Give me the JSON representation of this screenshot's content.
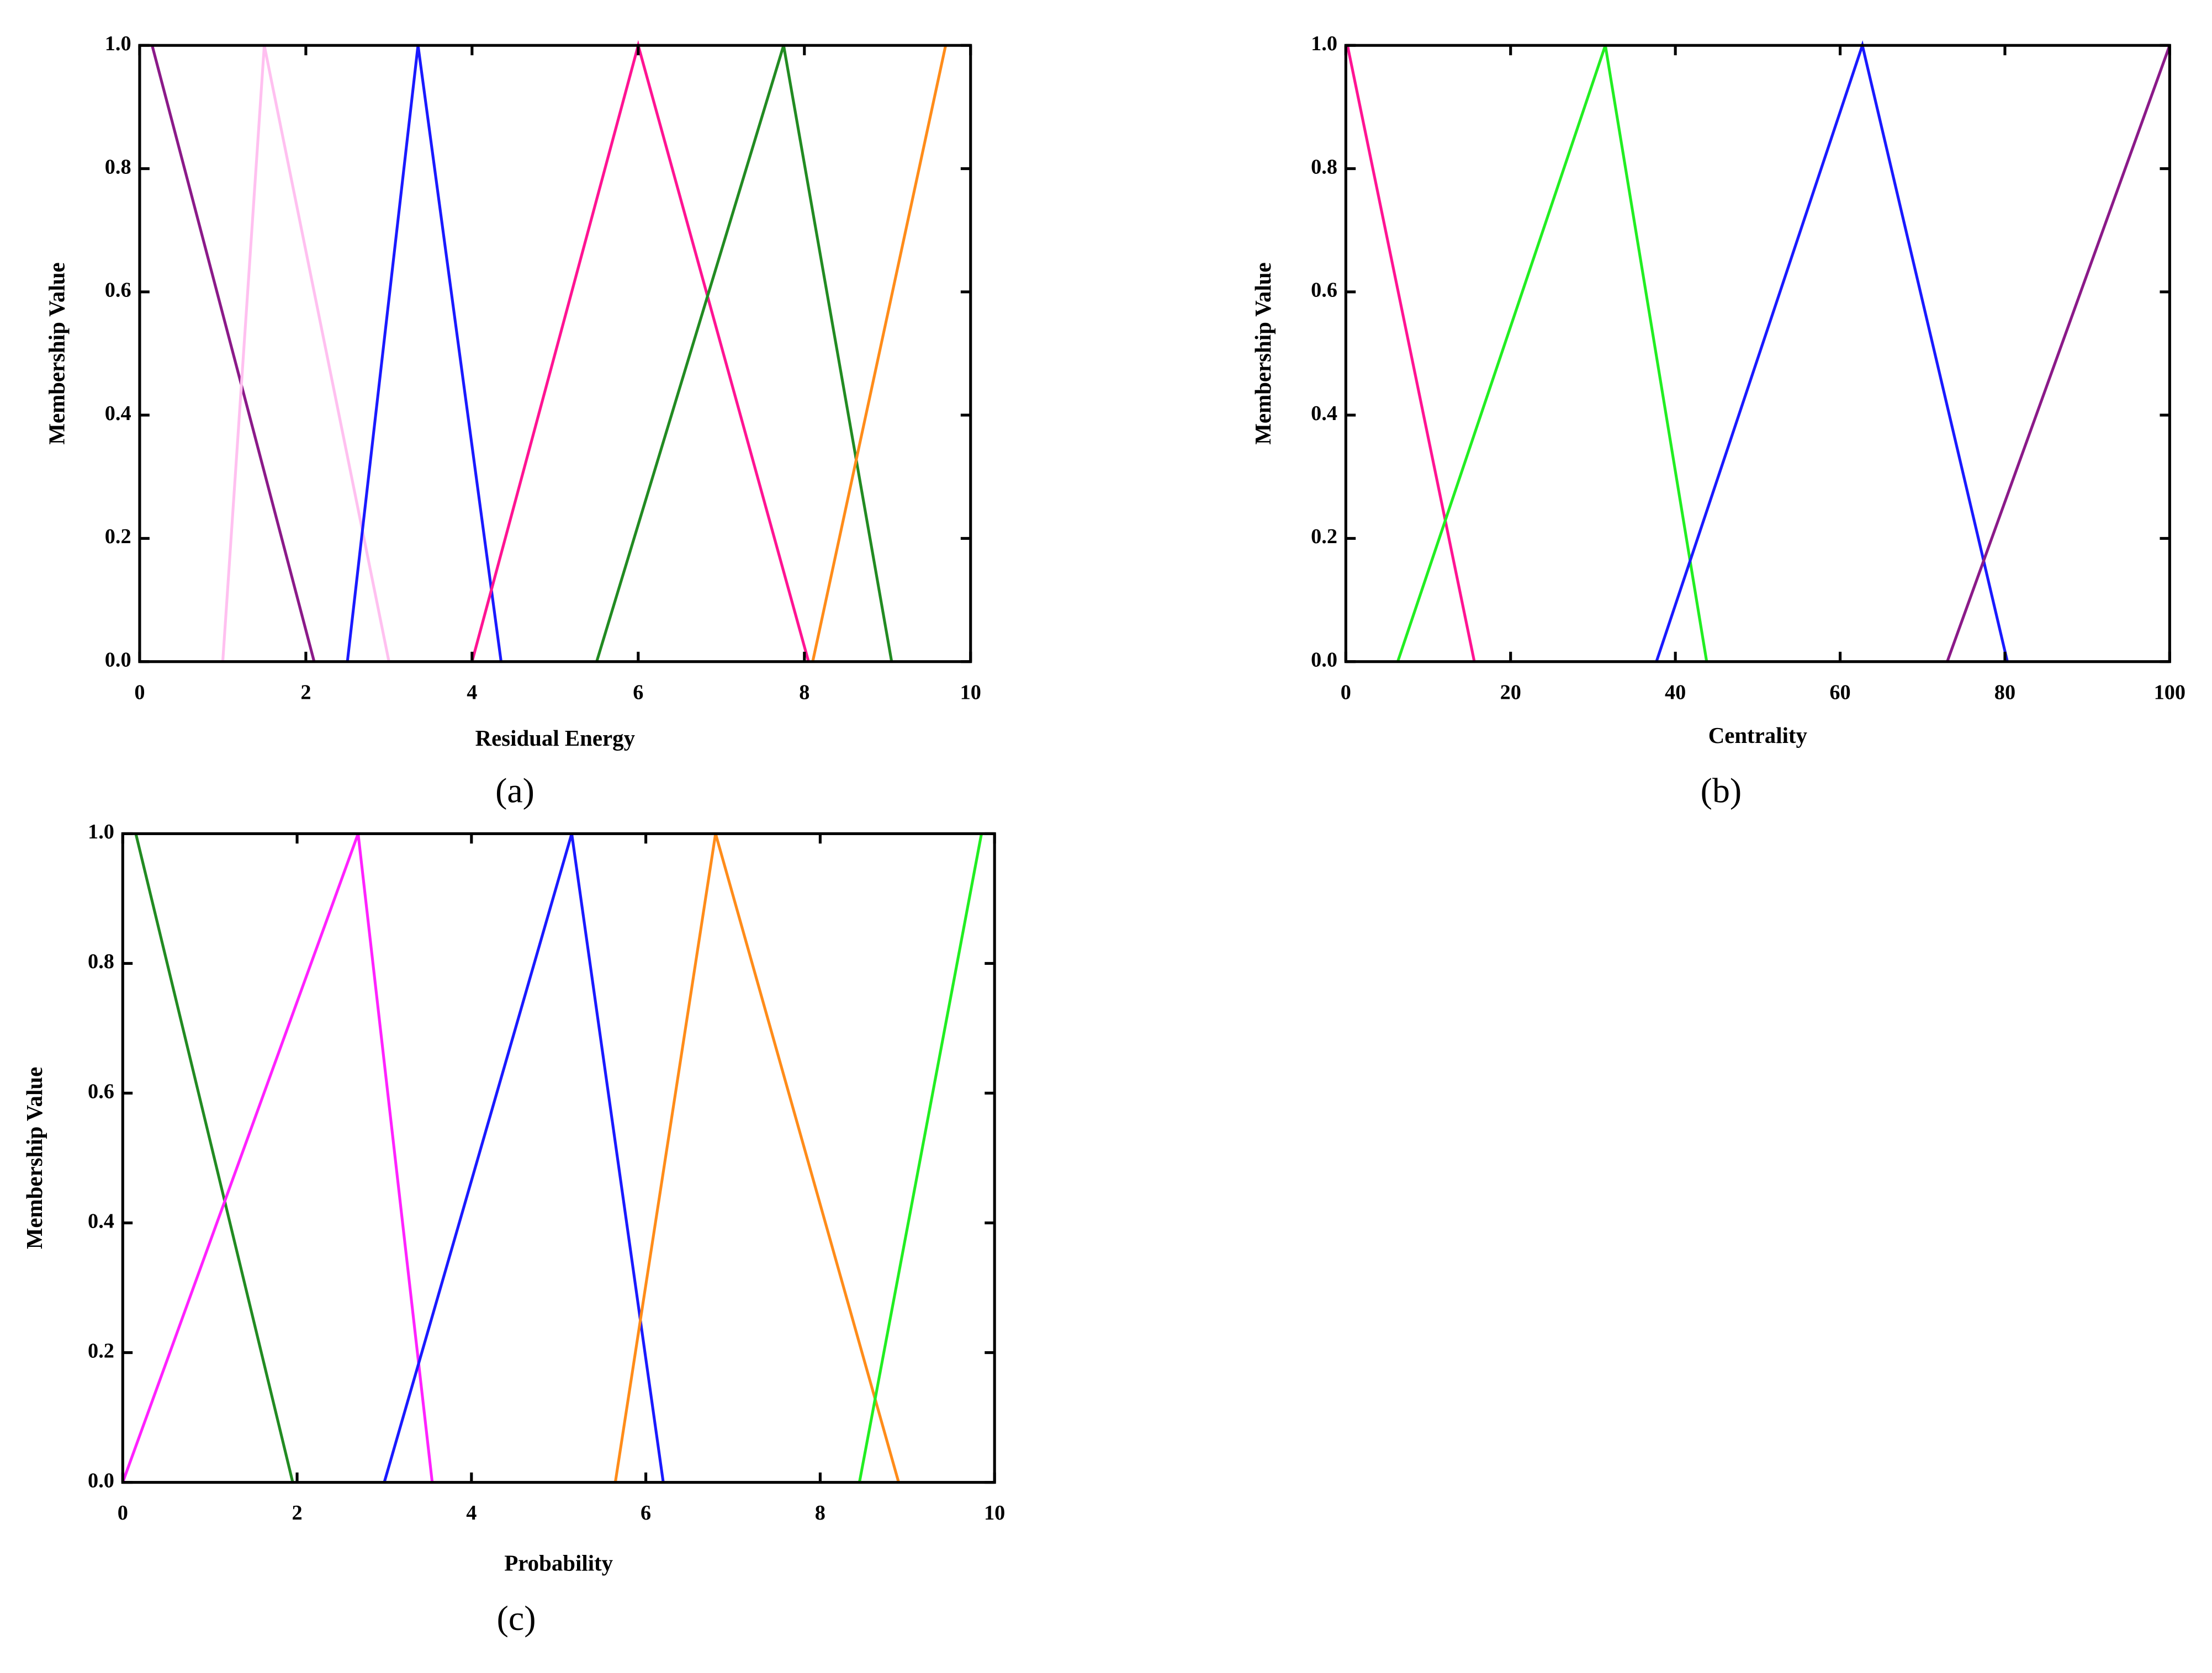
{
  "chart_data": [
    {
      "type": "line",
      "x_label": "Residual Energy",
      "y_label": "Membership Value",
      "caption": "(a)",
      "xlim": [
        0,
        10
      ],
      "xticks": [
        0,
        2,
        4,
        6,
        8,
        10
      ],
      "ylim": [
        0,
        1
      ],
      "yticks": [
        {
          "value": 0,
          "label": "0.0"
        },
        {
          "value": 0.2,
          "label": "0.2"
        },
        {
          "value": 0.4,
          "label": "0.4"
        },
        {
          "value": 0.6,
          "label": "0.6"
        },
        {
          "value": 0.8,
          "label": "0.8"
        },
        {
          "value": 1,
          "label": "1.0"
        }
      ],
      "series": [
        {
          "color": "#8b1a89",
          "x": [
            0.15,
            2.1
          ],
          "values": [
            1,
            0
          ]
        },
        {
          "color": "#ffc0f0",
          "x": [
            1.0,
            1.5,
            3.0
          ],
          "values": [
            0,
            1,
            0
          ]
        },
        {
          "color": "#1a1aff",
          "x": [
            2.5,
            3.35,
            4.35
          ],
          "values": [
            0,
            1,
            0
          ]
        },
        {
          "color": "#ff1493",
          "x": [
            4.0,
            6.0,
            8.05
          ],
          "values": [
            0,
            1,
            0
          ]
        },
        {
          "color": "#228b22",
          "x": [
            5.5,
            7.75,
            9.05
          ],
          "values": [
            0,
            1,
            0
          ]
        },
        {
          "color": "#ff8c1a",
          "x": [
            8.1,
            9.7
          ],
          "values": [
            0,
            1
          ]
        }
      ]
    },
    {
      "type": "line",
      "x_label": "Centrality",
      "y_label": "Membership Value",
      "caption": "(b)",
      "xlim": [
        0,
        100
      ],
      "xticks": [
        0,
        20,
        40,
        60,
        80,
        100
      ],
      "ylim": [
        0,
        1
      ],
      "yticks": [
        {
          "value": 0,
          "label": "0.0"
        },
        {
          "value": 0.2,
          "label": "0.2"
        },
        {
          "value": 0.4,
          "label": "0.4"
        },
        {
          "value": 0.6,
          "label": "0.6"
        },
        {
          "value": 0.8,
          "label": "0.8"
        },
        {
          "value": 1,
          "label": "1.0"
        }
      ],
      "series": [
        {
          "color": "#ff1493",
          "x": [
            0.2,
            15.6
          ],
          "values": [
            1,
            0
          ]
        },
        {
          "color": "#22ee22",
          "x": [
            6.3,
            31.5,
            43.8
          ],
          "values": [
            0,
            1,
            0
          ]
        },
        {
          "color": "#1a1aff",
          "x": [
            37.7,
            62.7,
            80.3
          ],
          "values": [
            0,
            1,
            0
          ]
        },
        {
          "color": "#8b1a89",
          "x": [
            73,
            100
          ],
          "values": [
            0,
            1
          ]
        }
      ]
    },
    {
      "type": "line",
      "x_label": "Probability",
      "y_label": "Membership Value",
      "caption": "(c)",
      "xlim": [
        0,
        10
      ],
      "xticks": [
        0,
        2,
        4,
        6,
        8,
        10
      ],
      "ylim": [
        0,
        1
      ],
      "yticks": [
        {
          "value": 0,
          "label": "0.0"
        },
        {
          "value": 0.2,
          "label": "0.2"
        },
        {
          "value": 0.4,
          "label": "0.4"
        },
        {
          "value": 0.6,
          "label": "0.6"
        },
        {
          "value": 0.8,
          "label": "0.8"
        },
        {
          "value": 1,
          "label": "1.0"
        }
      ],
      "series": [
        {
          "color": "#228b22",
          "x": [
            0.15,
            1.95
          ],
          "values": [
            1,
            0
          ]
        },
        {
          "color": "#ff22ff",
          "x": [
            0,
            2.7,
            3.55
          ],
          "values": [
            0,
            1,
            0
          ]
        },
        {
          "color": "#1a1aff",
          "x": [
            3.0,
            5.15,
            6.2
          ],
          "values": [
            0,
            1,
            0
          ]
        },
        {
          "color": "#ff8c1a",
          "x": [
            5.65,
            6.8,
            8.9
          ],
          "values": [
            0,
            1,
            0
          ]
        },
        {
          "color": "#22ee22",
          "x": [
            8.45,
            9.85
          ],
          "values": [
            0,
            1
          ]
        }
      ]
    }
  ]
}
